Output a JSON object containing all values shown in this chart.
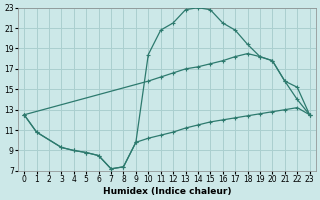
{
  "xlabel": "Humidex (Indice chaleur)",
  "background_color": "#cce8e8",
  "grid_color": "#aacfcf",
  "line_color": "#2d7a6e",
  "xlim": [
    -0.5,
    23.5
  ],
  "ylim": [
    7,
    23
  ],
  "yticks": [
    7,
    9,
    11,
    13,
    15,
    17,
    19,
    21,
    23
  ],
  "xticks": [
    0,
    1,
    2,
    3,
    4,
    5,
    6,
    7,
    8,
    9,
    10,
    11,
    12,
    13,
    14,
    15,
    16,
    17,
    18,
    19,
    20,
    21,
    22,
    23
  ],
  "curve_x": [
    0,
    1,
    3,
    4,
    5,
    6,
    7,
    8,
    9,
    10,
    11,
    12,
    13,
    14,
    15,
    16,
    17,
    18,
    19,
    20,
    21,
    22,
    23
  ],
  "curve_y": [
    12.5,
    10.8,
    9.3,
    9.0,
    8.8,
    8.5,
    7.2,
    7.4,
    9.8,
    18.4,
    20.8,
    21.5,
    22.8,
    23.0,
    22.8,
    21.5,
    20.8,
    19.4,
    18.2,
    17.8,
    15.8,
    14.0,
    12.5
  ],
  "diag_x": [
    0,
    10,
    11,
    12,
    13,
    14,
    15,
    16,
    17,
    18,
    19,
    20,
    21,
    22,
    23
  ],
  "diag_y": [
    12.5,
    15.8,
    16.2,
    16.6,
    17.0,
    17.2,
    17.5,
    17.8,
    18.2,
    18.5,
    18.2,
    17.8,
    15.8,
    15.2,
    12.5
  ],
  "flat_x": [
    0,
    1,
    3,
    4,
    5,
    6,
    7,
    8,
    9,
    10,
    11,
    12,
    13,
    14,
    15,
    16,
    17,
    18,
    19,
    20,
    21,
    22,
    23
  ],
  "flat_y": [
    12.5,
    10.8,
    9.3,
    9.0,
    8.8,
    8.5,
    7.2,
    7.4,
    9.8,
    10.2,
    10.5,
    10.8,
    11.2,
    11.5,
    11.8,
    12.0,
    12.2,
    12.4,
    12.6,
    12.8,
    13.0,
    13.2,
    12.5
  ]
}
